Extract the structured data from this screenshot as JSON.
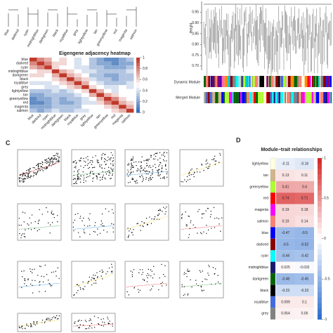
{
  "panel_a": {
    "modules": [
      "blue",
      "darkred",
      "cyan",
      "midnightblue",
      "darkgreen",
      "black",
      "royalblue",
      "grey",
      "lightyellow",
      "tan",
      "greenyellow",
      "red",
      "magenta",
      "salmon"
    ]
  },
  "heatmap": {
    "title": "Eigengene adjacency heatmap",
    "rows": [
      "blue",
      "darkred",
      "cyan",
      "midnightblue",
      "darkgreen",
      "black",
      "royalblue",
      "grey",
      "lightyellow",
      "tan",
      "greenyellow",
      "red",
      "magenta",
      "salmon"
    ],
    "values": [
      [
        1,
        0.8,
        0.7,
        0.5,
        0.6,
        0.5,
        0.4,
        0.5,
        0.3,
        0.2,
        0.1,
        0.1,
        0.2,
        0.3
      ],
      [
        0.8,
        1,
        0.8,
        0.6,
        0.6,
        0.5,
        0.4,
        0.5,
        0.3,
        0.2,
        0.2,
        0.1,
        0.2,
        0.2
      ],
      [
        0.7,
        0.8,
        1,
        0.6,
        0.5,
        0.5,
        0.4,
        0.4,
        0.3,
        0.3,
        0.2,
        0.2,
        0.2,
        0.3
      ],
      [
        0.5,
        0.6,
        0.6,
        1,
        0.7,
        0.6,
        0.5,
        0.4,
        0.4,
        0.3,
        0.3,
        0.3,
        0.3,
        0.4
      ],
      [
        0.6,
        0.6,
        0.5,
        0.7,
        1,
        0.7,
        0.6,
        0.5,
        0.3,
        0.3,
        0.2,
        0.2,
        0.3,
        0.3
      ],
      [
        0.5,
        0.5,
        0.5,
        0.6,
        0.7,
        1,
        0.7,
        0.6,
        0.4,
        0.3,
        0.3,
        0.2,
        0.3,
        0.3
      ],
      [
        0.4,
        0.4,
        0.4,
        0.5,
        0.6,
        0.7,
        1,
        0.7,
        0.5,
        0.4,
        0.3,
        0.3,
        0.3,
        0.4
      ],
      [
        0.5,
        0.5,
        0.4,
        0.4,
        0.5,
        0.6,
        0.7,
        1,
        0.6,
        0.5,
        0.4,
        0.4,
        0.5,
        0.4
      ],
      [
        0.3,
        0.3,
        0.3,
        0.4,
        0.3,
        0.4,
        0.5,
        0.6,
        1,
        0.7,
        0.5,
        0.4,
        0.5,
        0.5
      ],
      [
        0.2,
        0.2,
        0.3,
        0.3,
        0.3,
        0.3,
        0.4,
        0.5,
        0.7,
        1,
        0.7,
        0.6,
        0.5,
        0.5
      ],
      [
        0.1,
        0.2,
        0.2,
        0.3,
        0.2,
        0.3,
        0.3,
        0.4,
        0.5,
        0.7,
        1,
        0.8,
        0.6,
        0.5
      ],
      [
        0.1,
        0.1,
        0.2,
        0.3,
        0.2,
        0.2,
        0.3,
        0.4,
        0.4,
        0.6,
        0.8,
        1,
        0.7,
        0.6
      ],
      [
        0.2,
        0.2,
        0.2,
        0.3,
        0.3,
        0.3,
        0.3,
        0.5,
        0.5,
        0.5,
        0.6,
        0.7,
        1,
        0.7
      ],
      [
        0.3,
        0.2,
        0.3,
        0.4,
        0.3,
        0.3,
        0.4,
        0.4,
        0.5,
        0.5,
        0.5,
        0.6,
        0.7,
        1
      ]
    ],
    "clim": [
      0,
      1
    ],
    "cticks": [
      1,
      0.8,
      0.6,
      0.4,
      0.2,
      0
    ],
    "low_color": "#3b6fb6",
    "mid_color": "#ffffff",
    "high_color": "#c0392b"
  },
  "panel_b": {
    "ylabel": "Height",
    "ylim": [
      0.68,
      1.0
    ],
    "yticks": [
      {
        "value": 0.95,
        "label": "0.95"
      },
      {
        "value": 0.9,
        "label": "0.90"
      },
      {
        "value": 0.85,
        "label": "0.85"
      },
      {
        "value": 0.8,
        "label": "0.80"
      },
      {
        "value": 0.75,
        "label": "0.75"
      },
      {
        "value": 0.7,
        "label": "0.70"
      }
    ],
    "track_labels": [
      "Dynamic Module",
      "Merged Module"
    ]
  },
  "panel_c": {
    "label": "C"
  },
  "panel_d": {
    "label": "D",
    "title": "Module−trait relationships",
    "rows": [
      "lightyellow",
      "tan",
      "greenyellow",
      "red",
      "magenta",
      "salmon",
      "blue",
      "darkred",
      "cyan",
      "midnightblue",
      "darkgreen",
      "black",
      "royalblue",
      "grey"
    ],
    "values": [
      [
        -0.11,
        -0.16
      ],
      [
        0.13,
        0.11
      ],
      [
        0.41,
        0.4
      ],
      [
        0.74,
        0.71
      ],
      [
        0.19,
        0.18
      ],
      [
        0.19,
        0.14
      ],
      [
        -0.47,
        -0.5
      ],
      [
        -0.5,
        -0.52
      ],
      [
        -0.44,
        -0.42
      ],
      [
        0.025,
        -0.032
      ],
      [
        -0.48,
        -0.45
      ],
      [
        -0.23,
        -0.23
      ],
      [
        0.099,
        0.1
      ],
      [
        0.064,
        0.06
      ]
    ],
    "clim": [
      -1,
      1
    ],
    "cticks": [
      1,
      0.5,
      0,
      -0.5,
      -1
    ],
    "low_color": "#2f6fd0",
    "mid_color": "#ffffff",
    "high_color": "#d62b2b"
  }
}
